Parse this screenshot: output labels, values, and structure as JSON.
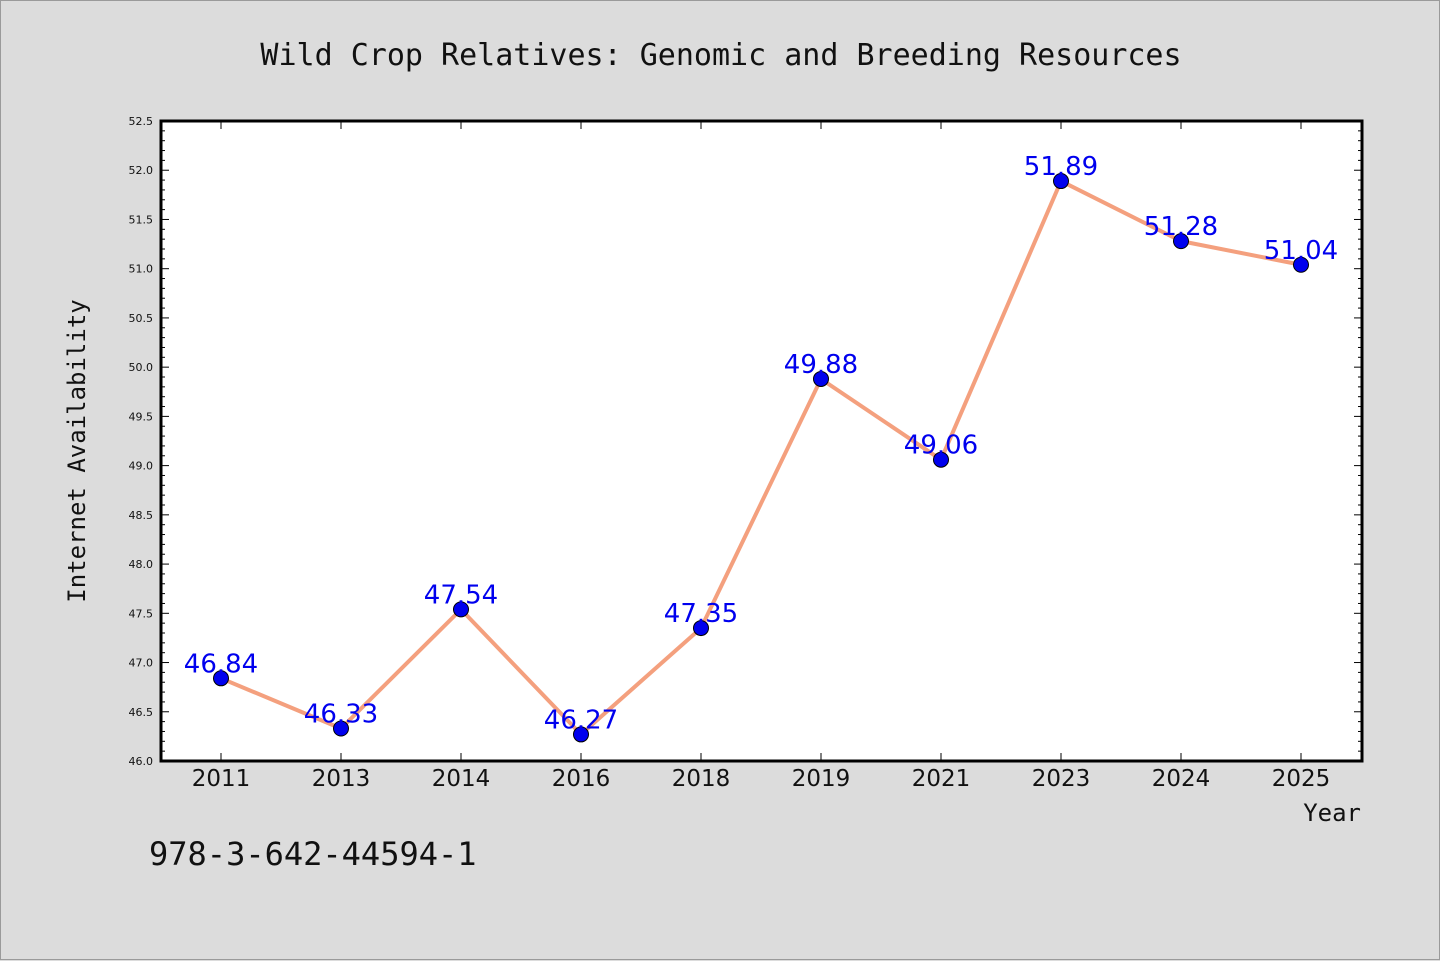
{
  "chart_data": {
    "type": "line",
    "title": "Wild Crop Relatives: Genomic and Breeding Resources",
    "xlabel": "Year",
    "ylabel": "Internet Availability",
    "categories": [
      "2011",
      "2013",
      "2014",
      "2016",
      "2018",
      "2019",
      "2021",
      "2023",
      "2024",
      "2025"
    ],
    "series": [
      {
        "values": [
          46.84,
          46.33,
          47.54,
          46.27,
          47.35,
          49.88,
          49.06,
          51.89,
          51.28,
          51.04
        ],
        "labels": [
          "46.84",
          "46.33",
          "47.54",
          "46.27",
          "47.35",
          "49.88",
          "49.06",
          "51.89",
          "51.28",
          "51.04"
        ],
        "line_color": "#f4a07e",
        "marker_color": "#0000ee"
      }
    ],
    "ylim": [
      46.0,
      52.5
    ],
    "yticks": [
      "46.0",
      "46.5",
      "47.0",
      "47.5",
      "48.0",
      "48.5",
      "49.0",
      "49.5",
      "50.0",
      "50.5",
      "51.0",
      "51.5",
      "52.0",
      "52.5"
    ],
    "grid": false,
    "legend": "none"
  },
  "footnote": "978-3-642-44594-1",
  "colors": {
    "background": "#dcdcdc",
    "plot_area": "#ffffff",
    "line": "#f4a07e",
    "marker": "#0000ee",
    "data_label": "#0000ee"
  }
}
